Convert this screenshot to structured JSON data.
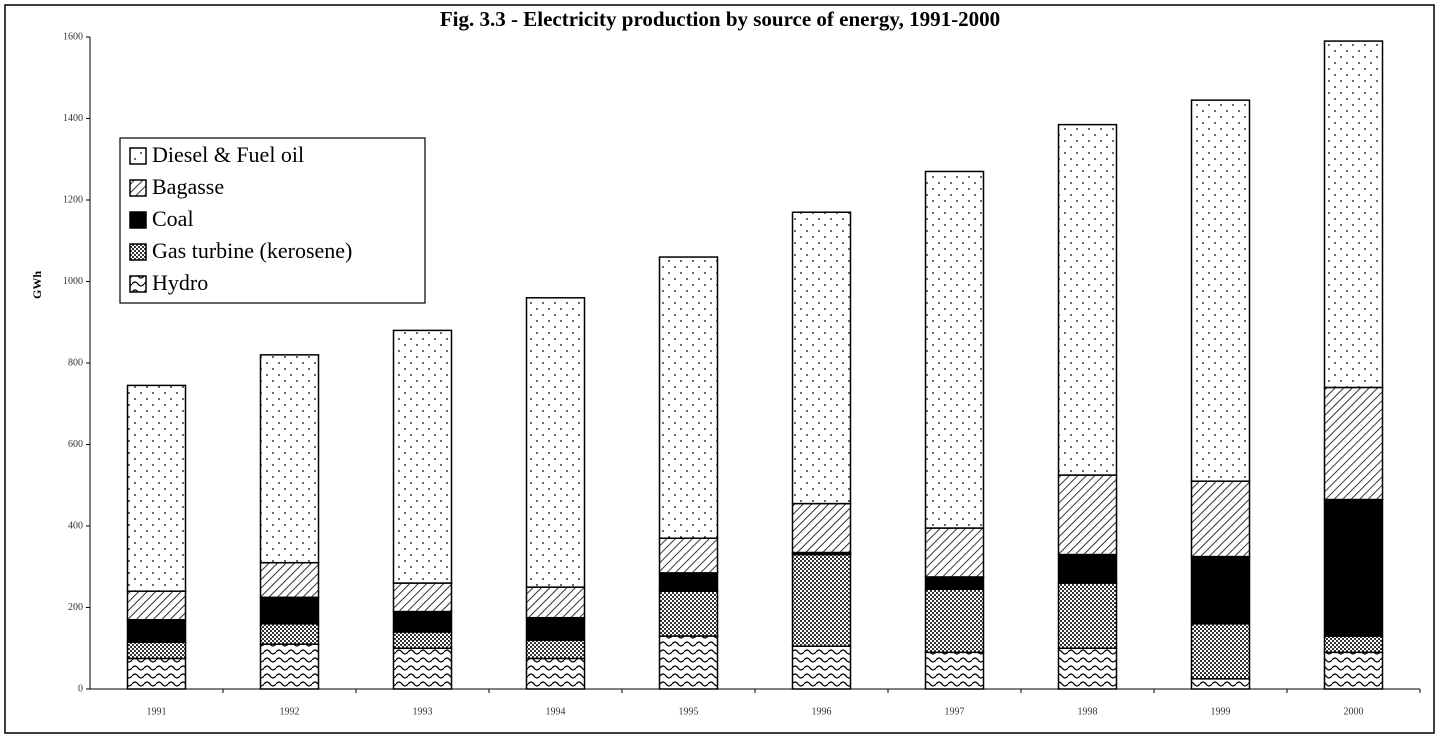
{
  "chart_data": {
    "type": "stacked_bar",
    "title": "Fig. 3.3 - Electricity production by source of energy, 1991-2000",
    "y_label": "GWh",
    "categories": [
      "1991",
      "1992",
      "1993",
      "1994",
      "1995",
      "1996",
      "1997",
      "1998",
      "1999",
      "2000"
    ],
    "series": [
      {
        "name": "Hydro",
        "color": "#000000",
        "fill": "wave",
        "values": [
          75,
          110,
          100,
          75,
          130,
          105,
          90,
          100,
          25,
          90
        ]
      },
      {
        "name": "Gas turbine (kerosene)",
        "color": "#000000",
        "fill": "checker",
        "values": [
          40,
          50,
          40,
          45,
          110,
          225,
          155,
          160,
          135,
          40
        ]
      },
      {
        "name": "Coal",
        "color": "#000000",
        "fill": "solid",
        "values": [
          55,
          65,
          50,
          55,
          45,
          5,
          30,
          70,
          165,
          335
        ]
      },
      {
        "name": "Bagasse",
        "color": "#000000",
        "fill": "hatch",
        "values": [
          70,
          85,
          70,
          75,
          85,
          120,
          120,
          195,
          185,
          275
        ]
      },
      {
        "name": "Diesel & Fuel oil",
        "color": "#000000",
        "fill": "dots",
        "values": [
          505,
          510,
          620,
          710,
          690,
          715,
          875,
          860,
          935,
          850
        ]
      }
    ],
    "ylim": [
      0,
      1600
    ],
    "yticks": [
      0,
      200,
      400,
      600,
      800,
      1000,
      1200,
      1400,
      1600
    ],
    "legend": "top-left"
  }
}
